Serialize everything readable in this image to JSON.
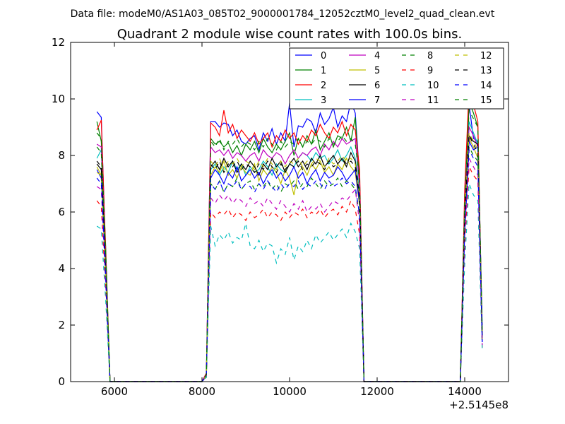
{
  "chart_data": {
    "type": "line",
    "suptitle": "Data file: modeM0/AS1A03_085T02_9000001784_12052cztM0_level2_quad_clean.evt",
    "title": "Quadrant 2 module wise count rates with 100.0s bins.",
    "xlabel": "",
    "ylabel": "",
    "x_offset_label": "+2.5145e8",
    "xlim": [
      5000,
      15000
    ],
    "ylim": [
      0,
      12
    ],
    "x_ticks": [
      6000,
      8000,
      10000,
      12000,
      14000
    ],
    "x_tick_labels": [
      "6000",
      "8000",
      "10000",
      "12000",
      "14000"
    ],
    "y_ticks": [
      0,
      2,
      4,
      6,
      8,
      10,
      12
    ],
    "y_tick_labels": [
      "0",
      "2",
      "4",
      "6",
      "8",
      "10",
      "12"
    ],
    "grid": false,
    "legend_position": "top-right",
    "legend_columns": 4,
    "x": [
      5600,
      5700,
      5800,
      5900,
      6000,
      6500,
      7000,
      7500,
      8000,
      8100,
      8200,
      8300,
      8400,
      8500,
      8600,
      8700,
      8800,
      8900,
      9000,
      9100,
      9200,
      9300,
      9400,
      9500,
      9600,
      9700,
      9800,
      9900,
      10000,
      10100,
      10200,
      10300,
      10400,
      10500,
      10600,
      10700,
      10800,
      10900,
      11000,
      11100,
      11200,
      11300,
      11400,
      11500,
      11600,
      11700,
      11800,
      11900,
      12500,
      13000,
      13500,
      13900,
      14000,
      14100,
      14200,
      14300,
      14400
    ],
    "series": [
      {
        "name": "0",
        "color": "#0000ff",
        "dash": "solid",
        "values": [
          9.55,
          9.35,
          4.5,
          0,
          0,
          0,
          0,
          0,
          0,
          0.3,
          9.2,
          9.2,
          9.0,
          9.15,
          9.1,
          8.7,
          8.9,
          8.5,
          8.4,
          8.6,
          8.7,
          8.2,
          8.8,
          8.5,
          8.95,
          8.4,
          8.8,
          8.5,
          9.85,
          8.3,
          9.05,
          9.0,
          9.3,
          9.2,
          8.8,
          9.5,
          9.1,
          9.3,
          9.7,
          9.0,
          9.4,
          9.2,
          9.9,
          9.5,
          7.2,
          0,
          0,
          0,
          0,
          0,
          0,
          0,
          6.5,
          9.8,
          8.6,
          8.5,
          2.0
        ]
      },
      {
        "name": "1",
        "color": "#008000",
        "dash": "solid",
        "values": [
          9.2,
          8.5,
          4.8,
          0,
          0,
          0,
          0,
          0,
          0,
          0.25,
          8.6,
          8.4,
          8.5,
          8.3,
          8.45,
          8.1,
          8.35,
          8.0,
          8.4,
          8.2,
          8.5,
          8.1,
          8.6,
          8.3,
          8.1,
          8.4,
          8.2,
          8.5,
          8.8,
          8.0,
          8.6,
          8.3,
          8.7,
          8.4,
          8.9,
          8.2,
          8.5,
          8.8,
          8.3,
          8.7,
          8.6,
          9.0,
          8.5,
          9.35,
          7.0,
          0,
          0,
          0,
          0,
          0,
          0,
          0,
          6.2,
          9.9,
          9.5,
          9.0,
          1.8
        ]
      },
      {
        "name": "2",
        "color": "#ff0000",
        "dash": "solid",
        "values": [
          8.9,
          9.25,
          4.6,
          0,
          0,
          0,
          0,
          0,
          0,
          0.3,
          9.15,
          9.0,
          8.7,
          9.6,
          8.8,
          9.1,
          8.6,
          8.9,
          8.7,
          8.5,
          8.8,
          8.4,
          8.6,
          8.8,
          8.3,
          8.7,
          8.5,
          8.9,
          8.6,
          8.8,
          8.4,
          8.7,
          8.5,
          8.9,
          8.7,
          9.1,
          8.8,
          8.6,
          9.0,
          8.8,
          9.2,
          8.7,
          9.1,
          8.9,
          7.5,
          0,
          0,
          0,
          0,
          0,
          0,
          0,
          6.8,
          10.4,
          9.8,
          9.2,
          1.5
        ]
      },
      {
        "name": "3",
        "color": "#00bfbf",
        "dash": "solid",
        "values": [
          7.9,
          8.2,
          4.2,
          0,
          0,
          0,
          0,
          0,
          0,
          0.2,
          7.5,
          7.7,
          7.3,
          7.6,
          7.4,
          7.8,
          7.5,
          7.7,
          7.3,
          7.6,
          7.4,
          7.5,
          7.8,
          7.6,
          7.3,
          7.7,
          7.5,
          7.4,
          7.7,
          7.6,
          7.9,
          8.1,
          8.0,
          7.8,
          8.1,
          7.9,
          8.0,
          7.7,
          7.9,
          8.2,
          7.8,
          8.0,
          8.3,
          7.9,
          6.7,
          0,
          0,
          0,
          0,
          0,
          0,
          0,
          6.0,
          9.2,
          8.8,
          8.4,
          1.6
        ]
      },
      {
        "name": "4",
        "color": "#bf00bf",
        "dash": "solid",
        "values": [
          8.4,
          8.3,
          4.3,
          0,
          0,
          0,
          0,
          0,
          0,
          0.25,
          8.3,
          8.1,
          8.2,
          8.0,
          8.2,
          7.9,
          8.1,
          8.0,
          7.8,
          8.0,
          8.1,
          7.8,
          8.2,
          8.0,
          7.9,
          8.1,
          8.0,
          7.7,
          8.0,
          8.2,
          7.9,
          8.1,
          8.0,
          8.2,
          8.3,
          8.0,
          8.4,
          8.2,
          8.5,
          8.3,
          8.6,
          8.4,
          8.5,
          8.6,
          6.9,
          0,
          0,
          0,
          0,
          0,
          0,
          0,
          6.1,
          9.0,
          8.7,
          8.3,
          1.7
        ]
      },
      {
        "name": "5",
        "color": "#bfbf00",
        "dash": "solid",
        "values": [
          7.6,
          7.3,
          3.9,
          0,
          0,
          0,
          0,
          0,
          0,
          0.2,
          7.3,
          7.6,
          7.4,
          7.8,
          7.3,
          7.5,
          7.2,
          7.6,
          7.4,
          7.3,
          7.7,
          7.1,
          7.5,
          7.3,
          7.6,
          7.4,
          7.0,
          7.5,
          7.2,
          6.6,
          7.4,
          7.6,
          7.3,
          7.7,
          7.5,
          7.8,
          7.4,
          7.6,
          7.3,
          7.7,
          7.5,
          7.9,
          7.6,
          7.4,
          6.2,
          0,
          0,
          0,
          0,
          0,
          0,
          0,
          5.6,
          8.6,
          8.3,
          7.9,
          1.5
        ]
      },
      {
        "name": "6",
        "color": "#000000",
        "dash": "solid",
        "values": [
          7.7,
          7.5,
          4.0,
          0,
          0,
          0,
          0,
          0,
          0,
          0.2,
          7.6,
          7.8,
          7.5,
          7.9,
          7.6,
          7.8,
          7.4,
          7.7,
          7.5,
          7.8,
          7.6,
          7.3,
          7.7,
          7.5,
          7.9,
          7.6,
          7.8,
          7.4,
          7.7,
          7.9,
          7.6,
          7.8,
          7.5,
          7.9,
          7.7,
          8.0,
          7.6,
          7.8,
          8.0,
          7.7,
          7.9,
          7.6,
          8.1,
          7.8,
          6.5,
          0,
          0,
          0,
          0,
          0,
          0,
          0,
          5.8,
          8.7,
          8.5,
          8.4,
          1.6
        ]
      },
      {
        "name": "7",
        "color": "#0000ff",
        "dash": "solid",
        "values": [
          7.5,
          7.2,
          3.8,
          0,
          0,
          0,
          0,
          0,
          0,
          0.2,
          7.2,
          7.5,
          7.3,
          7.0,
          7.4,
          7.2,
          7.6,
          7.1,
          7.3,
          7.5,
          7.2,
          7.4,
          7.0,
          7.3,
          7.5,
          7.2,
          7.4,
          7.1,
          7.3,
          7.6,
          7.2,
          7.4,
          7.0,
          7.3,
          7.5,
          7.1,
          7.4,
          7.2,
          7.3,
          7.6,
          7.4,
          7.1,
          7.3,
          7.5,
          6.3,
          0,
          0,
          0,
          0,
          0,
          0,
          0,
          5.5,
          8.5,
          8.2,
          8.3,
          1.4
        ]
      },
      {
        "name": "8",
        "color": "#008000",
        "dash": "dashed",
        "values": [
          8.3,
          8.1,
          4.1,
          0,
          0,
          0,
          0,
          0,
          0,
          0.2,
          7.0,
          6.8,
          7.1,
          6.7,
          7.0,
          6.9,
          7.2,
          6.8,
          7.0,
          7.1,
          6.8,
          7.0,
          6.9,
          7.1,
          6.8,
          7.0,
          6.7,
          7.0,
          6.9,
          7.1,
          6.8,
          7.0,
          6.9,
          7.2,
          7.0,
          6.8,
          7.1,
          6.9,
          7.0,
          7.2,
          6.9,
          7.1,
          7.0,
          6.8,
          5.9,
          0,
          0,
          0,
          0,
          0,
          0,
          0,
          5.4,
          8.3,
          8.0,
          7.8,
          1.4
        ]
      },
      {
        "name": "9",
        "color": "#ff0000",
        "dash": "dashed",
        "values": [
          6.4,
          6.2,
          3.3,
          0,
          0,
          0,
          0,
          0,
          0,
          0.15,
          6.0,
          5.8,
          6.0,
          5.9,
          6.1,
          5.8,
          6.0,
          5.9,
          5.7,
          6.0,
          5.8,
          5.9,
          6.1,
          5.8,
          6.0,
          5.9,
          5.7,
          6.0,
          5.8,
          6.0,
          5.9,
          6.1,
          5.8,
          6.0,
          5.9,
          6.1,
          5.8,
          6.0,
          6.1,
          5.9,
          6.2,
          6.0,
          6.4,
          6.1,
          5.2,
          0,
          0,
          0,
          0,
          0,
          0,
          0,
          4.8,
          7.6,
          7.3,
          7.1,
          1.2
        ]
      },
      {
        "name": "10",
        "color": "#00bfbf",
        "dash": "dashed",
        "values": [
          5.5,
          5.4,
          2.9,
          0,
          0,
          0,
          0,
          0,
          0,
          0.15,
          5.5,
          4.8,
          5.2,
          5.0,
          5.3,
          4.9,
          5.1,
          5.0,
          5.6,
          4.8,
          4.7,
          5.0,
          4.6,
          4.9,
          4.8,
          4.2,
          4.7,
          4.5,
          5.1,
          4.3,
          4.8,
          4.6,
          5.0,
          4.7,
          5.2,
          4.9,
          5.1,
          5.3,
          5.0,
          5.2,
          5.4,
          5.1,
          5.6,
          5.3,
          4.7,
          0,
          0,
          0,
          0,
          0,
          0,
          0,
          4.2,
          7.0,
          6.6,
          6.4,
          1.1
        ]
      },
      {
        "name": "11",
        "color": "#bf00bf",
        "dash": "dashed",
        "values": [
          6.9,
          6.8,
          3.5,
          0,
          0,
          0,
          0,
          0,
          0,
          0.2,
          6.5,
          6.3,
          6.6,
          6.4,
          6.6,
          6.3,
          6.5,
          6.4,
          6.2,
          6.5,
          6.3,
          6.4,
          6.2,
          6.5,
          6.3,
          6.1,
          6.4,
          6.2,
          6.0,
          6.3,
          6.1,
          6.4,
          6.0,
          6.2,
          6.1,
          6.3,
          6.0,
          6.2,
          6.4,
          6.3,
          6.5,
          6.4,
          6.6,
          6.8,
          5.6,
          0,
          0,
          0,
          0,
          0,
          0,
          0,
          5.1,
          7.9,
          7.6,
          7.3,
          1.3
        ]
      },
      {
        "name": "12",
        "color": "#bfbf00",
        "dash": "dashed",
        "values": [
          7.4,
          7.3,
          3.8,
          0,
          0,
          0,
          0,
          0,
          0,
          0.2,
          7.8,
          7.6,
          7.9,
          7.5,
          7.8,
          7.7,
          7.9,
          7.6,
          7.8,
          7.7,
          7.5,
          7.8,
          7.6,
          7.9,
          7.7,
          7.5,
          7.8,
          7.6,
          7.8,
          7.7,
          7.9,
          7.6,
          7.8,
          7.7,
          7.9,
          7.8,
          7.6,
          7.9,
          7.7,
          7.8,
          8.0,
          7.8,
          7.9,
          7.7,
          6.6,
          0,
          0,
          0,
          0,
          0,
          0,
          0,
          5.9,
          8.8,
          8.5,
          8.2,
          1.5
        ]
      },
      {
        "name": "13",
        "color": "#000000",
        "dash": "dashed",
        "values": [
          7.8,
          7.6,
          4.0,
          0,
          0,
          0,
          0,
          0,
          0,
          0.2,
          7.7,
          7.5,
          7.8,
          7.4,
          7.7,
          7.6,
          7.8,
          7.5,
          7.7,
          7.6,
          7.4,
          7.7,
          7.5,
          7.8,
          7.6,
          7.4,
          7.7,
          7.5,
          7.7,
          7.6,
          7.8,
          7.5,
          7.7,
          7.6,
          7.8,
          7.7,
          7.5,
          7.8,
          7.6,
          7.7,
          7.9,
          7.7,
          7.8,
          7.6,
          6.5,
          0,
          0,
          0,
          0,
          0,
          0,
          0,
          5.8,
          8.7,
          8.4,
          8.1,
          1.5
        ]
      },
      {
        "name": "14",
        "color": "#0000ff",
        "dash": "dashed",
        "values": [
          7.2,
          7.0,
          3.7,
          0,
          0,
          0,
          0,
          0,
          0,
          0.2,
          7.0,
          6.8,
          7.1,
          6.7,
          7.0,
          6.9,
          7.1,
          6.8,
          7.0,
          6.9,
          6.7,
          7.0,
          6.8,
          7.1,
          6.9,
          6.7,
          7.0,
          6.8,
          7.0,
          6.9,
          7.1,
          6.8,
          7.0,
          6.9,
          7.1,
          7.0,
          6.8,
          7.1,
          6.9,
          7.0,
          7.2,
          7.0,
          7.1,
          6.9,
          5.9,
          0,
          0,
          0,
          0,
          0,
          0,
          0,
          5.3,
          8.2,
          7.9,
          7.6,
          1.4
        ]
      },
      {
        "name": "15",
        "color": "#008000",
        "dash": "dashed",
        "values": [
          8.8,
          8.6,
          4.5,
          0,
          0,
          0,
          0,
          0,
          0,
          0.25,
          8.5,
          8.3,
          8.6,
          8.2,
          8.5,
          8.4,
          8.6,
          8.3,
          8.5,
          8.4,
          8.2,
          8.5,
          8.3,
          8.6,
          8.4,
          8.2,
          8.5,
          8.3,
          8.5,
          8.4,
          8.6,
          8.3,
          8.5,
          8.4,
          8.6,
          8.5,
          8.3,
          8.6,
          8.4,
          8.5,
          8.7,
          8.5,
          8.6,
          8.4,
          7.1,
          0,
          0,
          0,
          0,
          0,
          0,
          0,
          6.4,
          9.6,
          9.3,
          9.0,
          1.7
        ]
      }
    ]
  }
}
